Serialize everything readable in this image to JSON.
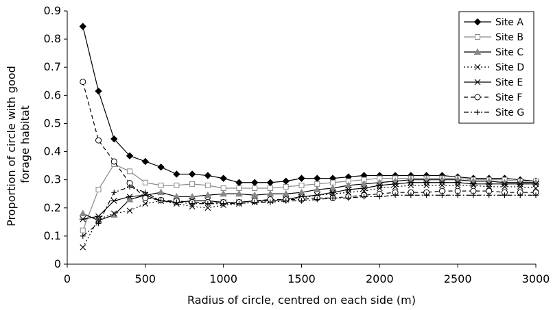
{
  "chart_data": {
    "type": "line",
    "xlabel": "Radius of circle, centred on each side (m)",
    "ylabel": [
      "Proportion of circle with good",
      "forage habitat"
    ],
    "xlim": [
      0,
      3000
    ],
    "ylim": [
      0,
      0.9
    ],
    "x_ticks": [
      0,
      500,
      1000,
      1500,
      2000,
      2500,
      3000
    ],
    "y_ticks": [
      0,
      0.1,
      0.2,
      0.3,
      0.4,
      0.5,
      0.6,
      0.7,
      0.8,
      0.9
    ],
    "x_tick_labels": [
      "0",
      "500",
      "1000",
      "1500",
      "2000",
      "2500",
      "3000"
    ],
    "y_tick_labels": [
      "0",
      "0.1",
      "0.2",
      "0.3",
      "0.4",
      "0.5",
      "0.6",
      "0.7",
      "0.8",
      "0.9"
    ],
    "grid": false,
    "legend": "top-right",
    "x": [
      100,
      200,
      300,
      400,
      500,
      600,
      700,
      800,
      900,
      1000,
      1100,
      1200,
      1300,
      1400,
      1500,
      1600,
      1700,
      1800,
      1900,
      2000,
      2100,
      2200,
      2300,
      2400,
      2500,
      2600,
      2700,
      2800,
      2900,
      3000
    ],
    "series": [
      {
        "name": "Site A",
        "marker": "diamond",
        "dash": "solid",
        "color": "#000000",
        "values": [
          0.845,
          0.615,
          0.445,
          0.385,
          0.365,
          0.345,
          0.32,
          0.32,
          0.315,
          0.305,
          0.29,
          0.29,
          0.29,
          0.295,
          0.305,
          0.305,
          0.305,
          0.31,
          0.315,
          0.315,
          0.315,
          0.315,
          0.315,
          0.315,
          0.31,
          0.305,
          0.305,
          0.305,
          0.3,
          0.295
        ]
      },
      {
        "name": "Site B",
        "marker": "square",
        "dash": "solid",
        "color": "#888888",
        "values": [
          0.12,
          0.265,
          0.355,
          0.33,
          0.29,
          0.28,
          0.28,
          0.285,
          0.28,
          0.27,
          0.27,
          0.27,
          0.27,
          0.275,
          0.28,
          0.285,
          0.29,
          0.295,
          0.3,
          0.305,
          0.305,
          0.305,
          0.305,
          0.305,
          0.305,
          0.3,
          0.3,
          0.3,
          0.295,
          0.295
        ]
      },
      {
        "name": "Site C",
        "marker": "triangle",
        "dash": "solid",
        "color": "#000000",
        "values": [
          0.18,
          0.155,
          0.175,
          0.23,
          0.245,
          0.255,
          0.24,
          0.24,
          0.245,
          0.25,
          0.25,
          0.245,
          0.25,
          0.25,
          0.255,
          0.265,
          0.27,
          0.28,
          0.285,
          0.29,
          0.295,
          0.3,
          0.3,
          0.3,
          0.3,
          0.295,
          0.295,
          0.29,
          0.29,
          0.29
        ]
      },
      {
        "name": "Site D",
        "marker": "x",
        "dash": "dotted",
        "color": "#000000",
        "values": [
          0.06,
          0.16,
          0.18,
          0.19,
          0.215,
          0.225,
          0.215,
          0.205,
          0.2,
          0.21,
          0.215,
          0.22,
          0.225,
          0.23,
          0.235,
          0.245,
          0.25,
          0.255,
          0.26,
          0.27,
          0.275,
          0.28,
          0.28,
          0.28,
          0.28,
          0.28,
          0.275,
          0.275,
          0.275,
          0.27
        ]
      },
      {
        "name": "Site E",
        "marker": "asterisk",
        "dash": "solid",
        "color": "#000000",
        "values": [
          0.16,
          0.17,
          0.225,
          0.24,
          0.245,
          0.225,
          0.22,
          0.225,
          0.225,
          0.22,
          0.22,
          0.225,
          0.225,
          0.23,
          0.24,
          0.245,
          0.255,
          0.265,
          0.27,
          0.28,
          0.285,
          0.29,
          0.29,
          0.29,
          0.29,
          0.285,
          0.285,
          0.285,
          0.285,
          0.285
        ]
      },
      {
        "name": "Site F",
        "marker": "circle",
        "dash": "dashed",
        "color": "#000000",
        "values": [
          0.648,
          0.44,
          0.365,
          0.288,
          0.235,
          0.228,
          0.225,
          0.22,
          0.22,
          0.22,
          0.22,
          0.225,
          0.23,
          0.23,
          0.23,
          0.235,
          0.235,
          0.24,
          0.245,
          0.25,
          0.255,
          0.255,
          0.255,
          0.26,
          0.26,
          0.26,
          0.26,
          0.255,
          0.255,
          0.255
        ]
      },
      {
        "name": "Site G",
        "marker": "plus",
        "dash": "dashdot",
        "color": "#000000",
        "values": [
          0.1,
          0.145,
          0.255,
          0.275,
          0.255,
          0.225,
          0.22,
          0.215,
          0.215,
          0.215,
          0.215,
          0.22,
          0.22,
          0.225,
          0.225,
          0.23,
          0.235,
          0.235,
          0.24,
          0.24,
          0.245,
          0.245,
          0.245,
          0.245,
          0.245,
          0.245,
          0.245,
          0.245,
          0.245,
          0.245
        ]
      }
    ]
  }
}
